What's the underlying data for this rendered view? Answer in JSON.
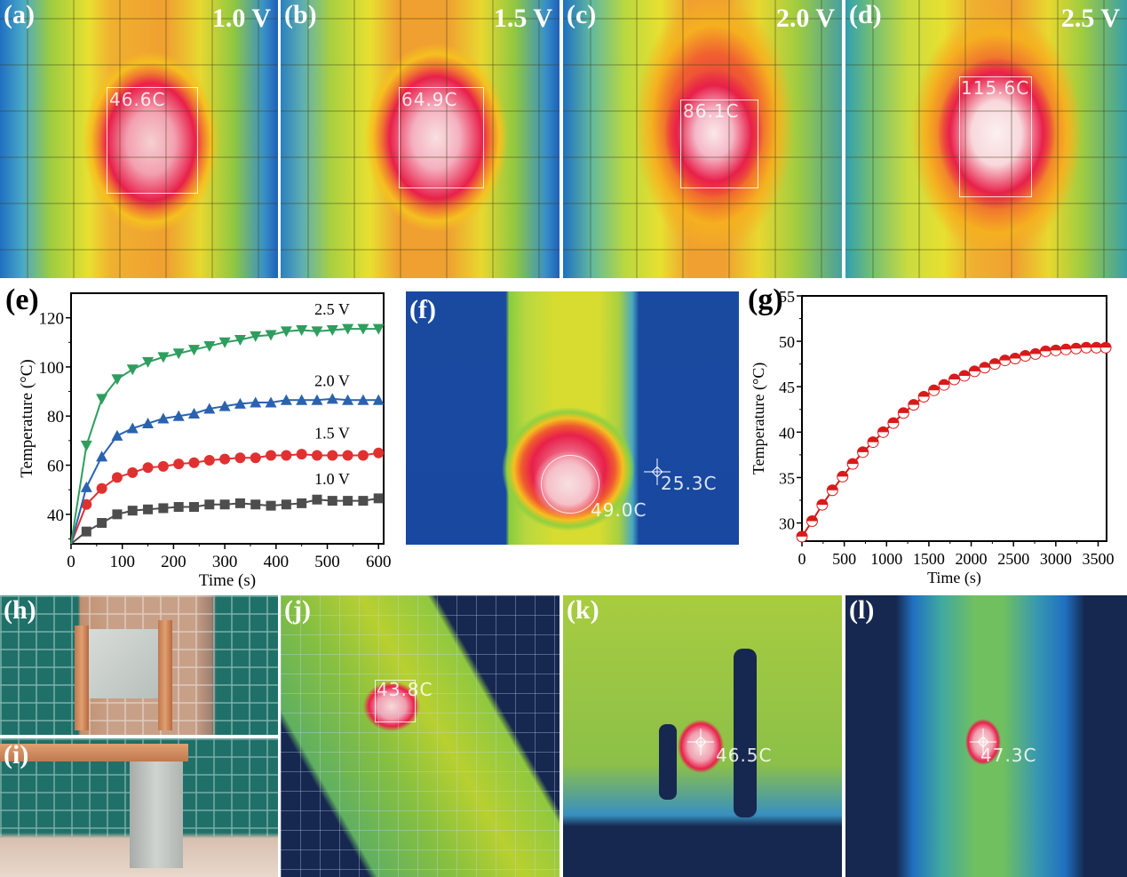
{
  "panels": {
    "a": {
      "label": "(a)",
      "voltage": "1.0 V",
      "readout": "46.6C"
    },
    "b": {
      "label": "(b)",
      "voltage": "1.5 V",
      "readout": "64.9C"
    },
    "c": {
      "label": "(c)",
      "voltage": "2.0 V",
      "readout": "86.1C"
    },
    "d": {
      "label": "(d)",
      "voltage": "2.5 V",
      "readout": "115.6C"
    },
    "e": {
      "label": "(e)"
    },
    "f": {
      "label": "(f)",
      "readout_spot": "25.3C",
      "readout_circle": "49.0C"
    },
    "g": {
      "label": "(g)"
    },
    "h": {
      "label": "(h)"
    },
    "i": {
      "label": "(i)"
    },
    "j": {
      "label": "(j)",
      "readout": "43.8C"
    },
    "k": {
      "label": "(k)",
      "readout": "46.5C"
    },
    "l": {
      "label": "(l)",
      "readout": "47.3C"
    }
  },
  "colors": {
    "series_1_0": "#4d4d4d",
    "series_1_5": "#e03131",
    "series_2_0": "#2a62b0",
    "series_2_5": "#2e9e5e",
    "series_g": "#d81a1a"
  },
  "chart_data": [
    {
      "type": "line",
      "panel": "(e)",
      "title": "",
      "xlabel": "Time (s)",
      "ylabel": "Temperature (°C)",
      "xlim": [
        0,
        610
      ],
      "ylim": [
        28,
        130
      ],
      "xticks": [
        0,
        100,
        200,
        300,
        400,
        500,
        600
      ],
      "yticks": [
        40,
        60,
        80,
        100,
        120
      ],
      "x": [
        0,
        30,
        60,
        90,
        120,
        150,
        180,
        210,
        240,
        270,
        300,
        330,
        360,
        390,
        420,
        450,
        480,
        510,
        540,
        570,
        600
      ],
      "series": [
        {
          "name": "1.0 V",
          "marker": "square",
          "values": [
            28,
            33,
            36.5,
            40,
            41.5,
            42,
            42.5,
            43,
            43,
            44,
            44,
            44.5,
            44,
            43.5,
            44,
            44.5,
            46,
            45.5,
            45.5,
            45.5,
            46.5
          ]
        },
        {
          "name": "1.5 V",
          "marker": "circle",
          "values": [
            28,
            44,
            50.5,
            55,
            57,
            59,
            59.5,
            60.5,
            61,
            62,
            62.5,
            63,
            63,
            64,
            64,
            64.5,
            64,
            64,
            64,
            64,
            65
          ]
        },
        {
          "name": "2.0 V",
          "marker": "triangle-up",
          "values": [
            28,
            51,
            63.5,
            72,
            75,
            77,
            79,
            80,
            81,
            83,
            84,
            85,
            85.5,
            85.5,
            86.5,
            86.5,
            86.5,
            87,
            86.5,
            86.5,
            86.5
          ]
        },
        {
          "name": "2.5 V",
          "marker": "triangle-down",
          "values": [
            28,
            68,
            87,
            95,
            99,
            102,
            104,
            105.5,
            107,
            108.5,
            110,
            111,
            112.5,
            113,
            114.5,
            115,
            114.5,
            115,
            115.5,
            115.5,
            115.5
          ]
        }
      ],
      "annotations": [
        "2.5 V",
        "2.0 V",
        "1.5 V",
        "1.0 V"
      ],
      "legend": "none (inline labels)",
      "grid": false
    },
    {
      "type": "line",
      "panel": "(g)",
      "title": "",
      "xlabel": "Time (s)",
      "ylabel": "Temperature (°C)",
      "xlim": [
        0,
        3600
      ],
      "ylim": [
        28,
        55
      ],
      "xticks": [
        0,
        500,
        1000,
        1500,
        2000,
        2500,
        3000,
        3500
      ],
      "yticks": [
        30,
        35,
        40,
        45,
        50,
        55
      ],
      "x": [
        0,
        120,
        240,
        360,
        480,
        600,
        720,
        840,
        960,
        1080,
        1200,
        1320,
        1440,
        1560,
        1680,
        1800,
        1920,
        2040,
        2160,
        2280,
        2400,
        2520,
        2640,
        2760,
        2880,
        3000,
        3120,
        3240,
        3360,
        3480,
        3600
      ],
      "series": [
        {
          "name": "Temperature",
          "marker": "half-filled circle",
          "values": [
            28.5,
            30.2,
            32.0,
            33.6,
            35.1,
            36.5,
            37.8,
            38.9,
            40.0,
            41.0,
            42.1,
            43.0,
            43.9,
            44.6,
            45.2,
            45.8,
            46.2,
            46.7,
            47.1,
            47.5,
            47.9,
            48.1,
            48.4,
            48.6,
            48.9,
            49.0,
            49.1,
            49.2,
            49.3,
            49.3,
            49.3
          ]
        }
      ],
      "legend": "none",
      "grid": false
    }
  ]
}
